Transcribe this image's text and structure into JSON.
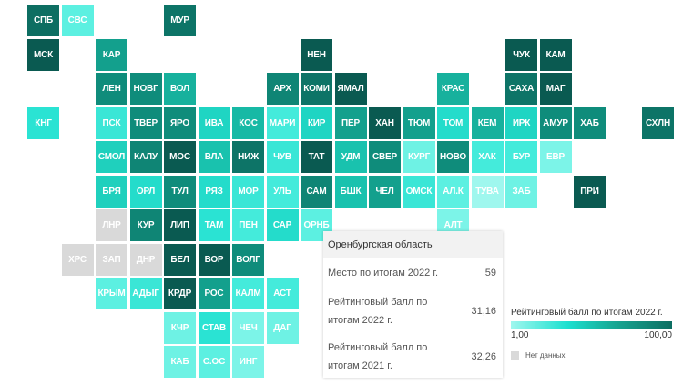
{
  "map": {
    "regions": [
      {
        "code": "СПБ",
        "row": 0,
        "col": 0,
        "color": "#0d6e62"
      },
      {
        "code": "СВС",
        "row": 0,
        "col": 1,
        "color": "#5cf0e1"
      },
      {
        "code": "МУР",
        "row": 0,
        "col": 4,
        "color": "#0d7467"
      },
      {
        "code": "МСК",
        "row": 1,
        "col": 0,
        "color": "#0a5a51"
      },
      {
        "code": "КАР",
        "row": 1,
        "col": 2,
        "color": "#13a08d"
      },
      {
        "code": "НЕН",
        "row": 1,
        "col": 8,
        "color": "#0a5a51"
      },
      {
        "code": "ЧУК",
        "row": 1,
        "col": 14,
        "color": "#0a5a51"
      },
      {
        "code": "КАМ",
        "row": 1,
        "col": 15,
        "color": "#0a5a51"
      },
      {
        "code": "ЛЕН",
        "row": 2,
        "col": 2,
        "color": "#0f8c7b"
      },
      {
        "code": "НОВГ",
        "row": 2,
        "col": 3,
        "color": "#0f8c7b"
      },
      {
        "code": "ВОЛ",
        "row": 2,
        "col": 4,
        "color": "#17b19d"
      },
      {
        "code": "АРХ",
        "row": 2,
        "col": 7,
        "color": "#0f8575"
      },
      {
        "code": "КОМИ",
        "row": 2,
        "col": 8,
        "color": "#0d7467"
      },
      {
        "code": "ЯМАЛ",
        "row": 2,
        "col": 9,
        "color": "#0a5a51"
      },
      {
        "code": "КРАС",
        "row": 2,
        "col": 12,
        "color": "#17b19d"
      },
      {
        "code": "САХА",
        "row": 2,
        "col": 14,
        "color": "#0d7467"
      },
      {
        "code": "МАГ",
        "row": 2,
        "col": 15,
        "color": "#0a5a51"
      },
      {
        "code": "КНГ",
        "row": 3,
        "col": 0,
        "color": "#2ae3d3"
      },
      {
        "code": "ПСК",
        "row": 3,
        "col": 2,
        "color": "#3ae6d6"
      },
      {
        "code": "ТВЕР",
        "row": 3,
        "col": 3,
        "color": "#0f8c7b"
      },
      {
        "code": "ЯРО",
        "row": 3,
        "col": 4,
        "color": "#0f8c7b"
      },
      {
        "code": "ИВА",
        "row": 3,
        "col": 5,
        "color": "#1fd5c3"
      },
      {
        "code": "КОС",
        "row": 3,
        "col": 6,
        "color": "#17b9a5"
      },
      {
        "code": "МАРИ",
        "row": 3,
        "col": 7,
        "color": "#44ebdb"
      },
      {
        "code": "КИР",
        "row": 3,
        "col": 8,
        "color": "#1fd5c3"
      },
      {
        "code": "ПЕР",
        "row": 3,
        "col": 9,
        "color": "#13a08d"
      },
      {
        "code": "ХАН",
        "row": 3,
        "col": 10,
        "color": "#0a5a51"
      },
      {
        "code": "ТЮМ",
        "row": 3,
        "col": 11,
        "color": "#13a08d"
      },
      {
        "code": "ТОМ",
        "row": 3,
        "col": 12,
        "color": "#24dccb"
      },
      {
        "code": "КЕМ",
        "row": 3,
        "col": 13,
        "color": "#17b19d"
      },
      {
        "code": "ИРК",
        "row": 3,
        "col": 14,
        "color": "#1fd5c3"
      },
      {
        "code": "АМУР",
        "row": 3,
        "col": 15,
        "color": "#0f8c7b"
      },
      {
        "code": "ХАБ",
        "row": 3,
        "col": 16,
        "color": "#0f8c7b"
      },
      {
        "code": "СХЛН",
        "row": 3,
        "col": 18,
        "color": "#0d7467"
      },
      {
        "code": "СМОЛ",
        "row": 4,
        "col": 2,
        "color": "#1fd0bd"
      },
      {
        "code": "КАЛУ",
        "row": 4,
        "col": 3,
        "color": "#0f8575"
      },
      {
        "code": "МОС",
        "row": 4,
        "col": 4,
        "color": "#0a5a51"
      },
      {
        "code": "ВЛА",
        "row": 4,
        "col": 5,
        "color": "#19c2ae"
      },
      {
        "code": "НИЖ",
        "row": 4,
        "col": 6,
        "color": "#0d7467"
      },
      {
        "code": "ЧУВ",
        "row": 4,
        "col": 7,
        "color": "#3ae6d6"
      },
      {
        "code": "ТАТ",
        "row": 4,
        "col": 8,
        "color": "#0a5a51"
      },
      {
        "code": "УДМ",
        "row": 4,
        "col": 9,
        "color": "#19c2ae"
      },
      {
        "code": "СВЕР",
        "row": 4,
        "col": 10,
        "color": "#0f8c7b"
      },
      {
        "code": "КУРГ",
        "row": 4,
        "col": 11,
        "color": "#6ef2e4"
      },
      {
        "code": "НОВО",
        "row": 4,
        "col": 12,
        "color": "#0f8c7b"
      },
      {
        "code": "ХАК",
        "row": 4,
        "col": 13,
        "color": "#44ebdb"
      },
      {
        "code": "БУР",
        "row": 4,
        "col": 14,
        "color": "#44ebdb"
      },
      {
        "code": "ЕВР",
        "row": 4,
        "col": 15,
        "color": "#7cf4e8"
      },
      {
        "code": "БРЯ",
        "row": 5,
        "col": 2,
        "color": "#1fd0bd"
      },
      {
        "code": "ОРЛ",
        "row": 5,
        "col": 3,
        "color": "#24dccb"
      },
      {
        "code": "ТУЛ",
        "row": 5,
        "col": 4,
        "color": "#0f8c7b"
      },
      {
        "code": "РЯЗ",
        "row": 5,
        "col": 5,
        "color": "#24dccb"
      },
      {
        "code": "МОР",
        "row": 5,
        "col": 6,
        "color": "#3ae6d6"
      },
      {
        "code": "УЛЬ",
        "row": 5,
        "col": 7,
        "color": "#44ebdb"
      },
      {
        "code": "САМ",
        "row": 5,
        "col": 8,
        "color": "#0f8575"
      },
      {
        "code": "БШК",
        "row": 5,
        "col": 9,
        "color": "#19c2ae"
      },
      {
        "code": "ЧЕЛ",
        "row": 5,
        "col": 10,
        "color": "#13a08d"
      },
      {
        "code": "ОМСК",
        "row": 5,
        "col": 11,
        "color": "#3ae6d6"
      },
      {
        "code": "АЛ.К",
        "row": 5,
        "col": 12,
        "color": "#5cf0e1"
      },
      {
        "code": "ТУВА",
        "row": 5,
        "col": 13,
        "color": "#9ff7ee"
      },
      {
        "code": "ЗАБ",
        "row": 5,
        "col": 14,
        "color": "#6ef2e4"
      },
      {
        "code": "ПРИ",
        "row": 5,
        "col": 16,
        "color": "#0a5a51"
      },
      {
        "code": "ЛНР",
        "row": 6,
        "col": 2,
        "color": "#d9d9d9"
      },
      {
        "code": "КУР",
        "row": 6,
        "col": 3,
        "color": "#0f8575"
      },
      {
        "code": "ЛИП",
        "row": 6,
        "col": 4,
        "color": "#0a5a51"
      },
      {
        "code": "ТАМ",
        "row": 6,
        "col": 5,
        "color": "#2ae3d3"
      },
      {
        "code": "ПЕН",
        "row": 6,
        "col": 6,
        "color": "#44ebdb"
      },
      {
        "code": "САР",
        "row": 6,
        "col": 7,
        "color": "#24dccb"
      },
      {
        "code": "ОРНБ",
        "row": 6,
        "col": 8,
        "color": "#5cf0e1"
      },
      {
        "code": "АЛТ",
        "row": 6,
        "col": 12,
        "color": "#7cf4e8"
      },
      {
        "code": "ХРС",
        "row": 7,
        "col": 1,
        "color": "#d9d9d9"
      },
      {
        "code": "ЗАП",
        "row": 7,
        "col": 2,
        "color": "#d9d9d9"
      },
      {
        "code": "ДНР",
        "row": 7,
        "col": 3,
        "color": "#d9d9d9"
      },
      {
        "code": "БЕЛ",
        "row": 7,
        "col": 4,
        "color": "#0a5a51"
      },
      {
        "code": "ВОР",
        "row": 7,
        "col": 5,
        "color": "#0a5a51"
      },
      {
        "code": "ВОЛГ",
        "row": 7,
        "col": 6,
        "color": "#0f8c7b"
      },
      {
        "code": "КРЫМ",
        "row": 8,
        "col": 2,
        "color": "#5cf0e1"
      },
      {
        "code": "АДЫГ",
        "row": 8,
        "col": 3,
        "color": "#3ae6d6"
      },
      {
        "code": "КРДР",
        "row": 8,
        "col": 4,
        "color": "#0a5a51"
      },
      {
        "code": "РОС",
        "row": 8,
        "col": 5,
        "color": "#13a08d"
      },
      {
        "code": "КАЛМ",
        "row": 8,
        "col": 6,
        "color": "#44ebdb"
      },
      {
        "code": "АСТ",
        "row": 8,
        "col": 7,
        "color": "#44ebdb"
      },
      {
        "code": "КЧР",
        "row": 9,
        "col": 4,
        "color": "#6ef2e4"
      },
      {
        "code": "СТАВ",
        "row": 9,
        "col": 5,
        "color": "#2ae3d3"
      },
      {
        "code": "ЧЕЧ",
        "row": 9,
        "col": 6,
        "color": "#7cf4e8"
      },
      {
        "code": "ДАГ",
        "row": 9,
        "col": 7,
        "color": "#6ef2e4"
      },
      {
        "code": "КАБ",
        "row": 10,
        "col": 4,
        "color": "#6ef2e4"
      },
      {
        "code": "С.ОС",
        "row": 10,
        "col": 5,
        "color": "#5cf0e1"
      },
      {
        "code": "ИНГ",
        "row": 10,
        "col": 6,
        "color": "#7cf4e8"
      }
    ]
  },
  "tooltip": {
    "title": "Оренбургская область",
    "rows": [
      {
        "label": "Место по итогам 2022 г.",
        "value": "59"
      },
      {
        "label": "Рейтинговый балл по итогам 2022 г.",
        "value": "31,16"
      },
      {
        "label": "Рейтинговый балл по итогам 2021 г.",
        "value": "32,26"
      }
    ]
  },
  "legend": {
    "title": "Рейтинговый балл по итогам 2022 г.",
    "min_label": "1,00",
    "max_label": "100,00",
    "no_data_label": "Нет данных",
    "gradient": [
      "#9ff7ee",
      "#1de0d0",
      "#17a692",
      "#0d6e62"
    ],
    "no_data_color": "#d9d9d9"
  }
}
